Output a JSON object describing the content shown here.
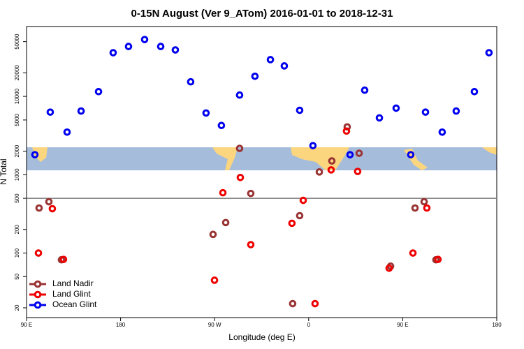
{
  "chart_data": {
    "type": "scatter",
    "title": "0-15N August (Ver 9_ATom)   2016-01-01 to 2018-12-31",
    "xlabel": "Longitude (deg E)",
    "ylabel": "N Total",
    "xlim": [
      90,
      540
    ],
    "xticks": [
      {
        "value": 90,
        "label": "90 E"
      },
      180,
      {
        "value": 270,
        "label": "90 W"
      },
      {
        "value": 360,
        "label": "0"
      },
      {
        "value": 450,
        "label": "90 E"
      },
      {
        "value": 540,
        "label": "180"
      }
    ],
    "ylim": [
      15,
      78000
    ],
    "ylog": true,
    "yticks": [
      20,
      50,
      100,
      200,
      500,
      1000,
      2000,
      5000,
      10000,
      20000,
      50000
    ],
    "reference_line": 500,
    "legend": "bottom-left",
    "series": [
      {
        "name": "Land Nadir",
        "color": "#993333",
        "x": [
          102,
          111.4,
          123.4,
          268.5,
          280.6,
          293.9,
          304.6,
          344.7,
          351.4,
          370.2,
          382.2,
          396.9,
          408.3,
          438.4,
          461.8,
          470.5,
          481.8
        ],
        "values": [
          376,
          452,
          82,
          173,
          245,
          2170,
          577,
          22.6,
          300,
          1085,
          1500,
          4080,
          1880,
          68,
          376,
          452,
          82
        ]
      },
      {
        "name": "Land Glint",
        "color": "#ee0000",
        "x": [
          101.4,
          114.7,
          125.4,
          269.9,
          277.9,
          294.6,
          304.6,
          344,
          354.8,
          366.1,
          381.5,
          396.2,
          406.9,
          437,
          459.8,
          473.1,
          483.8
        ],
        "values": [
          100,
          368,
          83,
          45,
          589,
          922,
          128,
          240,
          471,
          22.6,
          1153,
          3610,
          1100,
          64,
          100,
          376,
          83
        ]
      },
      {
        "name": "Ocean Glint",
        "color": "#0000ee",
        "x": [
          98,
          112.7,
          128.8,
          142.2,
          158.9,
          172.9,
          187.6,
          203,
          218.4,
          232.4,
          247.1,
          261.8,
          276.5,
          293.9,
          308.6,
          323.4,
          336.7,
          351.4,
          364.1,
          399.6,
          413.6,
          427.7,
          443.7,
          457.7,
          471.8,
          487.8,
          501.2,
          518.6,
          532.6
        ],
        "values": [
          1800,
          6300,
          3500,
          6500,
          11500,
          36100,
          43400,
          53200,
          43400,
          39200,
          15350,
          6140,
          4250,
          10400,
          18070,
          29450,
          24500,
          6650,
          2350,
          1800,
          12000,
          5320,
          7080,
          1800,
          6300,
          3500,
          6500,
          11500,
          36100
        ]
      }
    ]
  }
}
